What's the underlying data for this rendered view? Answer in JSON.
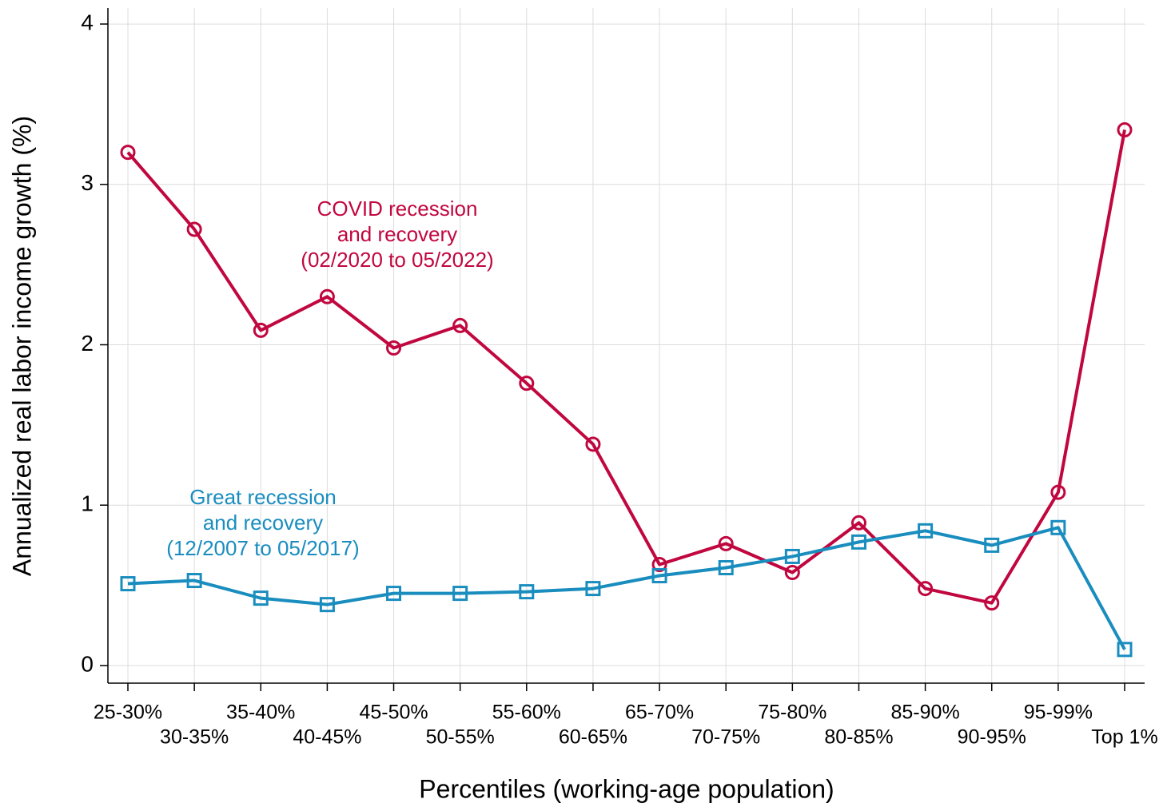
{
  "chart_data": {
    "type": "line",
    "x_label": "Percentiles (working-age population)",
    "y_label": "Annualized real labor income growth (%)",
    "categories": [
      "25-30%",
      "30-35%",
      "35-40%",
      "40-45%",
      "45-50%",
      "50-55%",
      "55-60%",
      "60-65%",
      "65-70%",
      "70-75%",
      "75-80%",
      "80-85%",
      "85-90%",
      "90-95%",
      "95-99%",
      "Top 1%"
    ],
    "series": [
      {
        "name": "COVID recession and recovery (02/2020 to 05/2022)",
        "label_lines": [
          "COVID recession",
          "and recovery",
          "(02/2020 to 05/2022)"
        ],
        "color": "#c1073f",
        "marker": "circle",
        "values": [
          3.2,
          2.72,
          2.09,
          2.3,
          1.98,
          2.12,
          1.76,
          1.38,
          0.63,
          0.76,
          0.58,
          0.89,
          0.48,
          0.39,
          1.08,
          3.34
        ]
      },
      {
        "name": "Great recession and recovery (12/2007 to 05/2017)",
        "label_lines": [
          "Great recession",
          "and recovery",
          "(12/2007 to 05/2017)"
        ],
        "color": "#1a8dbf",
        "marker": "square",
        "values": [
          0.51,
          0.53,
          0.42,
          0.38,
          0.45,
          0.45,
          0.46,
          0.48,
          0.56,
          0.61,
          0.68,
          0.77,
          0.84,
          0.75,
          0.86,
          0.1
        ]
      }
    ],
    "ylim": [
      -0.11,
      4.1
    ],
    "yticks": [
      0,
      1,
      2,
      3,
      4
    ],
    "grid": true
  }
}
